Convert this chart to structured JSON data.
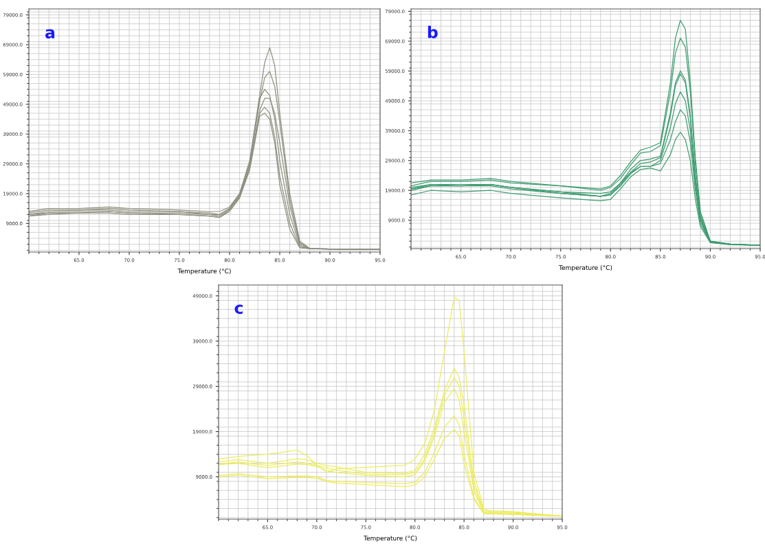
{
  "chart_data": [
    {
      "type": "line",
      "xlabel": "Temperature (°C)",
      "annotations": [
        "a"
      ],
      "grid": true,
      "xlim": [
        60,
        95
      ],
      "xticks": [
        {
          "value": 65,
          "label": "65.0"
        },
        {
          "value": 70,
          "label": "70.0"
        },
        {
          "value": 75,
          "label": "75.0"
        },
        {
          "value": 80,
          "label": "80.0"
        },
        {
          "value": 85,
          "label": "85.0"
        },
        {
          "value": 90,
          "label": "90.0"
        },
        {
          "value": 95,
          "label": "95.0"
        }
      ],
      "ylim": [
        -600,
        81000
      ],
      "yticks": [
        {
          "value": 9000,
          "label": "9000.0"
        },
        {
          "value": 19000,
          "label": "19000.0"
        },
        {
          "value": 29000,
          "label": "29000.0"
        },
        {
          "value": 39000,
          "label": "39000.0"
        },
        {
          "value": 49000,
          "label": "49000.0"
        },
        {
          "value": 59000,
          "label": "59000.0"
        },
        {
          "value": 69000,
          "label": "69000.0"
        },
        {
          "value": 79000,
          "label": "79000.0"
        }
      ],
      "x": [
        60,
        62,
        65,
        68,
        70,
        75,
        78,
        79,
        80,
        81,
        82,
        83,
        83.5,
        84,
        84.5,
        85,
        86,
        87,
        88,
        90,
        95
      ],
      "series": [
        {
          "color": "#8f8f80",
          "values": [
            13000,
            14000,
            14000,
            14500,
            14000,
            13500,
            13000,
            13000,
            14500,
            19000,
            30000,
            52000,
            63000,
            68000,
            62000,
            46000,
            19000,
            3000,
            600,
            400,
            300
          ]
        },
        {
          "color": "#8f8f80",
          "values": [
            12000,
            13000,
            13500,
            13500,
            13000,
            13000,
            12500,
            12000,
            14000,
            19000,
            29000,
            50000,
            58000,
            60000,
            55000,
            43000,
            17000,
            2500,
            500,
            400,
            300
          ]
        },
        {
          "color": "#8f8f80",
          "values": [
            12500,
            13500,
            13500,
            14000,
            13500,
            13000,
            12000,
            12000,
            14000,
            18500,
            29000,
            51000,
            54000,
            52000,
            44000,
            30000,
            12000,
            1500,
            500,
            400,
            300
          ]
        },
        {
          "color": "#8f8f80",
          "values": [
            11500,
            12500,
            13000,
            13000,
            12500,
            12500,
            12000,
            11500,
            13500,
            18000,
            28000,
            47000,
            51000,
            51000,
            46000,
            36000,
            15000,
            2000,
            500,
            400,
            300
          ]
        },
        {
          "color": "#8f8f80",
          "values": [
            12000,
            12500,
            12500,
            13000,
            12500,
            12000,
            11500,
            11000,
            13500,
            18000,
            27000,
            46000,
            48000,
            46000,
            38000,
            25000,
            9000,
            1000,
            500,
            400,
            300
          ]
        },
        {
          "color": "#8f8f80",
          "values": [
            11500,
            12000,
            12500,
            12500,
            12000,
            12000,
            11500,
            11000,
            13000,
            17500,
            27000,
            45000,
            46000,
            44000,
            36000,
            22000,
            7000,
            800,
            500,
            400,
            300
          ]
        }
      ]
    },
    {
      "type": "line",
      "xlabel": "Temperature (°C)",
      "annotations": [
        "b"
      ],
      "grid": true,
      "xlim": [
        60,
        95
      ],
      "xticks": [
        {
          "value": 65,
          "label": "65.0"
        },
        {
          "value": 70,
          "label": "70.0"
        },
        {
          "value": 75,
          "label": "75.0"
        },
        {
          "value": 80,
          "label": "80.0"
        },
        {
          "value": 85,
          "label": "85.0"
        },
        {
          "value": 90,
          "label": "90.0"
        },
        {
          "value": 95,
          "label": "95.0"
        }
      ],
      "ylim": [
        -500,
        79800
      ],
      "yticks": [
        {
          "value": 9000,
          "label": "9000.0"
        },
        {
          "value": 19000,
          "label": "19000.0"
        },
        {
          "value": 29000,
          "label": "29000.0"
        },
        {
          "value": 39000,
          "label": "39000.0"
        },
        {
          "value": 49000,
          "label": "49000.0"
        },
        {
          "value": 59000,
          "label": "59000.0"
        },
        {
          "value": 69000,
          "label": "69000.0"
        },
        {
          "value": 79000,
          "label": "79000.0"
        }
      ],
      "x": [
        60,
        62,
        65,
        68,
        70,
        75,
        79,
        80,
        81,
        82,
        83,
        84,
        85,
        86,
        86.5,
        87,
        87.5,
        88,
        88.5,
        89,
        90,
        92,
        95
      ],
      "series": [
        {
          "color": "#3d9c70",
          "values": [
            21500,
            22500,
            22500,
            23000,
            22000,
            20500,
            19500,
            20500,
            24000,
            28500,
            32500,
            33500,
            35000,
            55000,
            70000,
            76000,
            73000,
            55000,
            30000,
            12000,
            2000,
            1000,
            600
          ]
        },
        {
          "color": "#3d9c70",
          "values": [
            20500,
            22000,
            22000,
            22500,
            21500,
            20500,
            19000,
            20000,
            23000,
            27500,
            31500,
            32000,
            34000,
            52000,
            65000,
            70000,
            67000,
            52000,
            28000,
            11000,
            2000,
            1000,
            600
          ]
        },
        {
          "color": "#3d9c70",
          "values": [
            19500,
            21000,
            21000,
            21000,
            20000,
            18500,
            17000,
            18000,
            21500,
            26000,
            29000,
            29500,
            30500,
            45000,
            55000,
            59000,
            56000,
            44000,
            24000,
            10000,
            1800,
            900,
            600
          ]
        },
        {
          "color": "#3d9c70",
          "values": [
            19000,
            20500,
            20500,
            21000,
            20000,
            18000,
            17000,
            17500,
            21000,
            25000,
            28000,
            28500,
            30000,
            44000,
            54000,
            58000,
            55000,
            43000,
            23000,
            9500,
            1800,
            900,
            600
          ]
        },
        {
          "color": "#3d9c70",
          "values": [
            19500,
            20500,
            20500,
            20500,
            19500,
            18000,
            17000,
            17500,
            20500,
            24500,
            27000,
            27000,
            29000,
            40000,
            48000,
            52000,
            49000,
            39000,
            21000,
            9000,
            1700,
            900,
            600
          ]
        },
        {
          "color": "#3d9c70",
          "values": [
            20000,
            21000,
            20500,
            21000,
            20000,
            18500,
            18000,
            18500,
            21500,
            25000,
            27000,
            27000,
            28000,
            36000,
            42000,
            46000,
            44000,
            35000,
            19000,
            8000,
            1600,
            900,
            600
          ]
        },
        {
          "color": "#3d9c70",
          "values": [
            17500,
            19000,
            18500,
            19000,
            18000,
            16500,
            15500,
            16000,
            19500,
            23500,
            26000,
            26500,
            25500,
            31000,
            36000,
            38500,
            36000,
            29000,
            16000,
            7000,
            1500,
            800,
            600
          ]
        }
      ]
    },
    {
      "type": "line",
      "xlabel": "Temperature (°C)",
      "annotations": [
        "c"
      ],
      "grid": true,
      "xlim": [
        60,
        95
      ],
      "xticks": [
        {
          "value": 65,
          "label": "65.0"
        },
        {
          "value": 70,
          "label": "70.0"
        },
        {
          "value": 75,
          "label": "75.0"
        },
        {
          "value": 80,
          "label": "80.0"
        },
        {
          "value": 85,
          "label": "85.0"
        },
        {
          "value": 90,
          "label": "90.0"
        },
        {
          "value": 95,
          "label": "95.0"
        }
      ],
      "ylim": [
        -350,
        51400
      ],
      "yticks": [
        {
          "value": 9000,
          "label": "9000.0"
        },
        {
          "value": 19000,
          "label": "19000.0"
        },
        {
          "value": 29000,
          "label": "29000.0"
        },
        {
          "value": 39000,
          "label": "39000.0"
        },
        {
          "value": 49000,
          "label": "49000.0"
        }
      ],
      "x": [
        60,
        62,
        65,
        68,
        69,
        70,
        71,
        72,
        75,
        79,
        80,
        81,
        82,
        83,
        84,
        84.5,
        85,
        86,
        87,
        88,
        90,
        95
      ],
      "series": [
        {
          "color": "#ecec5c",
          "values": [
            12900,
            13500,
            14000,
            14900,
            13700,
            11600,
            10000,
            10800,
            11100,
            11600,
            12900,
            16400,
            23900,
            36700,
            48700,
            47900,
            36700,
            10000,
            2000,
            1000,
            700,
            300
          ]
        },
        {
          "color": "#ecec5c",
          "values": [
            12300,
            12800,
            12000,
            13000,
            12800,
            12000,
            11500,
            11200,
            10000,
            9800,
            10500,
            14000,
            20000,
            28000,
            33000,
            31000,
            25000,
            8000,
            1500,
            1500,
            1300,
            300
          ]
        },
        {
          "color": "#ecec5c",
          "values": [
            11800,
            12300,
            11500,
            12300,
            12000,
            11500,
            11000,
            10500,
            9600,
            9500,
            10000,
            13000,
            19000,
            27000,
            31000,
            29000,
            22000,
            7000,
            1200,
            1200,
            1200,
            300
          ]
        },
        {
          "color": "#ecec5c",
          "values": [
            11700,
            12000,
            11000,
            11800,
            11700,
            11300,
            10500,
            10000,
            9300,
            9000,
            9500,
            12500,
            18000,
            25500,
            28500,
            26000,
            19000,
            6000,
            1000,
            1000,
            1000,
            300
          ]
        },
        {
          "color": "#ecec5c",
          "values": [
            9300,
            9700,
            9000,
            9200,
            9200,
            9000,
            8200,
            8000,
            7800,
            7500,
            7800,
            10000,
            14500,
            20000,
            22500,
            20500,
            14000,
            4500,
            900,
            900,
            800,
            300
          ]
        },
        {
          "color": "#ecec5c",
          "values": [
            9000,
            9400,
            8600,
            8900,
            8800,
            8700,
            8000,
            7600,
            7300,
            6800,
            7200,
            9000,
            13000,
            17500,
            19500,
            18000,
            12000,
            4000,
            900,
            800,
            700,
            300
          ]
        }
      ]
    }
  ]
}
